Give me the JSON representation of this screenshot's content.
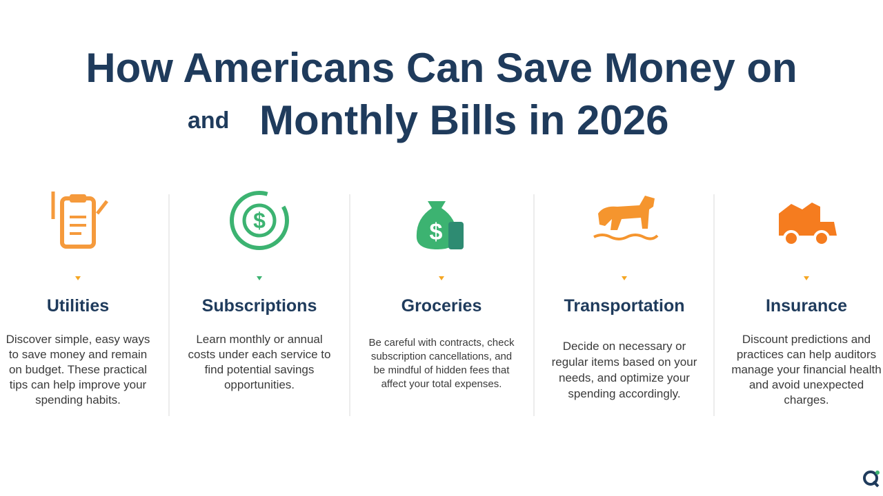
{
  "header": {
    "title_line1": "How Americans Can Save Money on",
    "and": "and",
    "title_line2": "Monthly Bills in 2026"
  },
  "cards": [
    {
      "title": "Utilities",
      "text": "Discover simple, easy ways to save money and remain on budget. These practical tips can help improve your spending habits."
    },
    {
      "title": "Subscriptions",
      "text": "Learn monthly or annual costs under each service to find potential savings opportunities."
    },
    {
      "title": "Groceries",
      "text": "Be careful with contracts, check subscription cancellations, and be mindful of hidden fees that affect your total expenses."
    },
    {
      "title": "Transportation",
      "text": "Decide on necessary or regular items based on your needs, and optimize your spending accordingly."
    },
    {
      "title": "Insurance",
      "text": "Discount predictions and practices can help auditors manage your financial health and avoid unexpected charges."
    }
  ]
}
